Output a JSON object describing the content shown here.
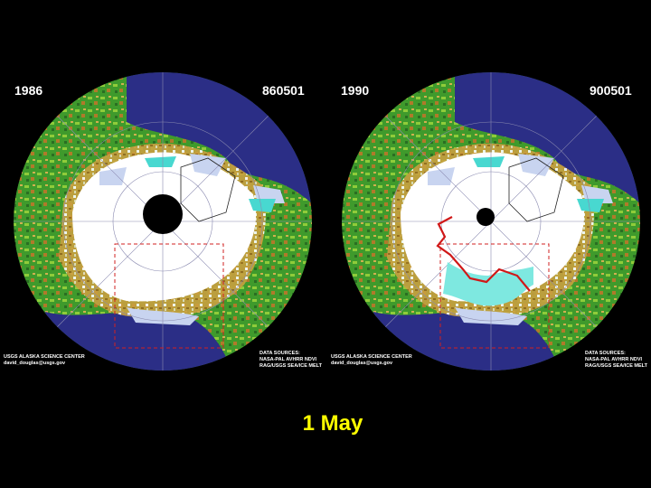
{
  "panels": [
    {
      "year": "1986",
      "code": "860501",
      "credit": [
        "USGS ALASKA SCIENCE CENTER",
        "david_douglas@usgs.gov"
      ],
      "sources": [
        "DATA SOURCES:",
        "NASA-PAL AVHRR NDVI",
        "RAG/USGS SEA/ICE MELT"
      ]
    },
    {
      "year": "1990",
      "code": "900501",
      "credit": [
        "USGS ALASKA SCIENCE CENTER",
        "david_douglas@usgs.gov"
      ],
      "sources": [
        "DATA SOURCES:",
        "NASA-PAL AVHRR NDVI",
        "RAG/USGS SEA/ICE MELT"
      ]
    }
  ],
  "caption": "1 May"
}
